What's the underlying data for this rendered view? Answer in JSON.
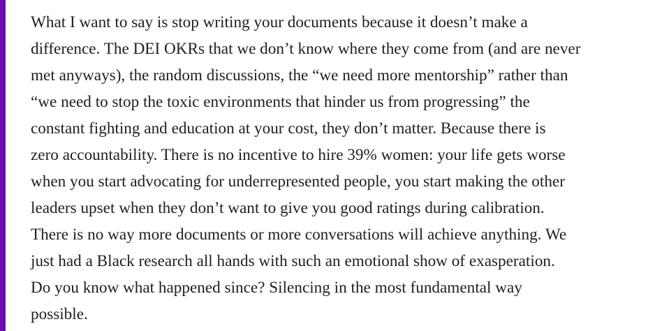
{
  "quote": {
    "accent_color": "#6a0dad",
    "lines": [
      "What I want to say is stop writing your documents because it doesn’t make a",
      "difference. The DEI OKRs that we don’t know where they come from (and are never",
      "met anyways), the random discussions, the “we need more mentorship” rather than",
      "“we need to stop the toxic environments that hinder us from progressing” the",
      "constant fighting and education at your cost, they don’t matter. Because there is",
      "zero accountability. There is no incentive to hire 39% women: your life gets worse",
      "when you start advocating for underrepresented people, you start making the other",
      "leaders upset when they don’t want to give you good ratings during calibration.",
      "There is no way more documents or more conversations will achieve anything. We",
      "just had a Black research all hands with such an emotional show of exasperation.",
      "Do you know what happened since? Silencing in the most fundamental way",
      "possible."
    ]
  }
}
